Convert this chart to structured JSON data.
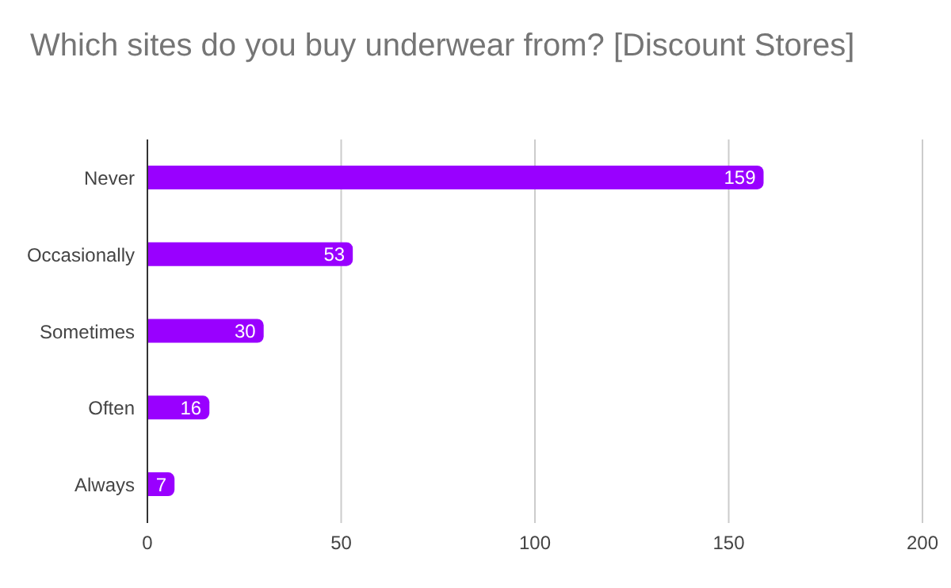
{
  "chart_data": {
    "type": "bar",
    "orientation": "horizontal",
    "title": "Which sites do you buy underwear from? [Discount Stores]",
    "categories": [
      "Never",
      "Occasionally",
      "Sometimes",
      "Often",
      "Always"
    ],
    "values": [
      159,
      53,
      30,
      16,
      7
    ],
    "color": "#9900ff",
    "xlim": [
      0,
      200
    ],
    "xticks": [
      0,
      50,
      100,
      150,
      200
    ],
    "grid": "x",
    "data_labels": true
  }
}
